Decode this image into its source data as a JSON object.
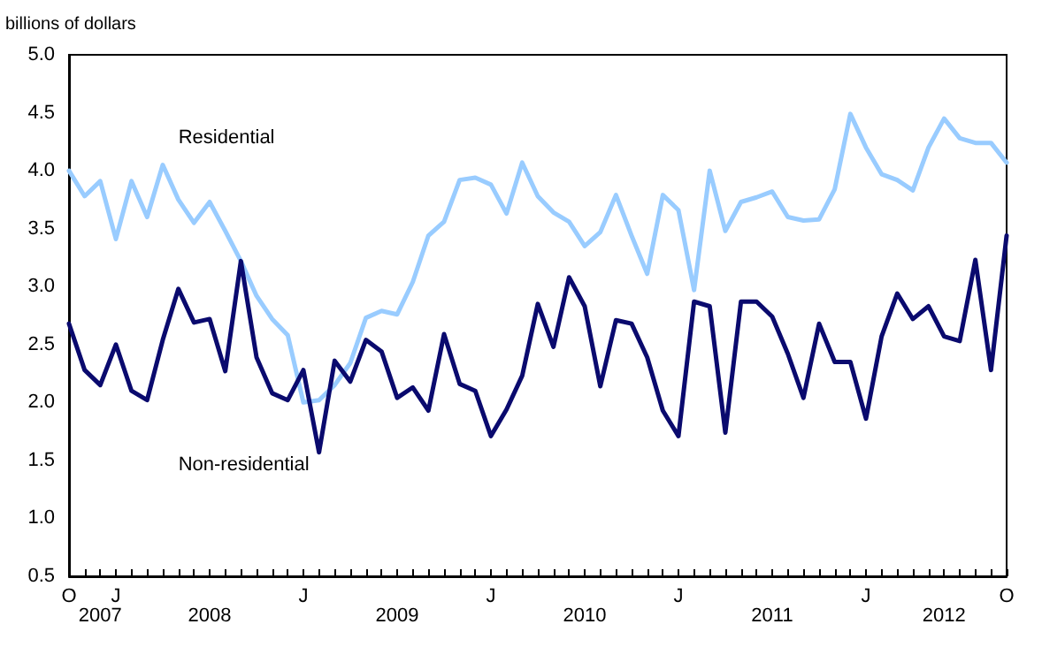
{
  "chart_data": {
    "type": "line",
    "ylabel": "billions of dollars",
    "categories": [
      "O",
      null,
      null,
      "J",
      null,
      null,
      null,
      null,
      null,
      null,
      null,
      null,
      null,
      null,
      null,
      "J",
      null,
      null,
      null,
      null,
      null,
      null,
      null,
      null,
      null,
      null,
      null,
      "J",
      null,
      null,
      null,
      null,
      null,
      null,
      null,
      null,
      null,
      null,
      null,
      "J",
      null,
      null,
      null,
      null,
      null,
      null,
      null,
      null,
      null,
      null,
      null,
      "J",
      null,
      null,
      null,
      null,
      null,
      null,
      null,
      null,
      "O"
    ],
    "annotations": [
      "2007",
      "2008",
      "2009",
      "2010",
      "2011",
      "2012"
    ],
    "series": [
      {
        "name": "Residential",
        "color": "#99ccff",
        "values": [
          4.0,
          3.78,
          3.91,
          3.41,
          3.91,
          3.6,
          4.05,
          3.75,
          3.55,
          3.73,
          3.48,
          3.22,
          2.92,
          2.72,
          2.58,
          2.0,
          2.02,
          2.15,
          2.34,
          2.73,
          2.79,
          2.76,
          3.04,
          3.44,
          3.56,
          3.92,
          3.94,
          3.88,
          3.63,
          4.07,
          3.78,
          3.64,
          3.56,
          3.35,
          3.47,
          3.79,
          3.44,
          3.11,
          3.79,
          3.66,
          2.97,
          4.0,
          3.48,
          3.73,
          3.77,
          3.82,
          3.6,
          3.57,
          3.58,
          3.84,
          4.49,
          4.2,
          3.97,
          3.92,
          3.83,
          4.2,
          4.45,
          4.28,
          4.24,
          4.24,
          4.07
        ]
      },
      {
        "name": "Non-residential",
        "color": "#0a0a6e",
        "values": [
          2.68,
          2.28,
          2.15,
          2.5,
          2.1,
          2.02,
          2.54,
          2.98,
          2.69,
          2.72,
          2.27,
          3.22,
          2.39,
          2.08,
          2.02,
          2.28,
          1.57,
          2.36,
          2.18,
          2.54,
          2.44,
          2.04,
          2.13,
          1.93,
          2.59,
          2.16,
          2.1,
          1.71,
          1.94,
          2.23,
          2.85,
          2.48,
          3.08,
          2.83,
          2.14,
          2.71,
          2.68,
          2.39,
          1.93,
          1.71,
          2.87,
          2.83,
          1.74,
          2.87,
          2.87,
          2.74,
          2.42,
          2.04,
          2.68,
          2.35,
          2.35,
          1.86,
          2.57,
          2.94,
          2.72,
          2.83,
          2.57,
          2.53,
          3.23,
          2.28,
          3.44
        ]
      }
    ],
    "ylim": [
      0.5,
      5.0
    ],
    "yticks": [
      {
        "value": 0.5,
        "label": "0.5"
      },
      {
        "value": 1.0,
        "label": "1.0"
      },
      {
        "value": 1.5,
        "label": "1.5"
      },
      {
        "value": 2.0,
        "label": "2.0"
      },
      {
        "value": 2.5,
        "label": "2.5"
      },
      {
        "value": 3.0,
        "label": "3.0"
      },
      {
        "value": 3.5,
        "label": "3.5"
      },
      {
        "value": 4.0,
        "label": "4.0"
      },
      {
        "value": 4.5,
        "label": "4.5"
      },
      {
        "value": 5.0,
        "label": "5.0"
      }
    ],
    "grid": false,
    "legend": false,
    "marker": "none",
    "line_style": "solid"
  }
}
